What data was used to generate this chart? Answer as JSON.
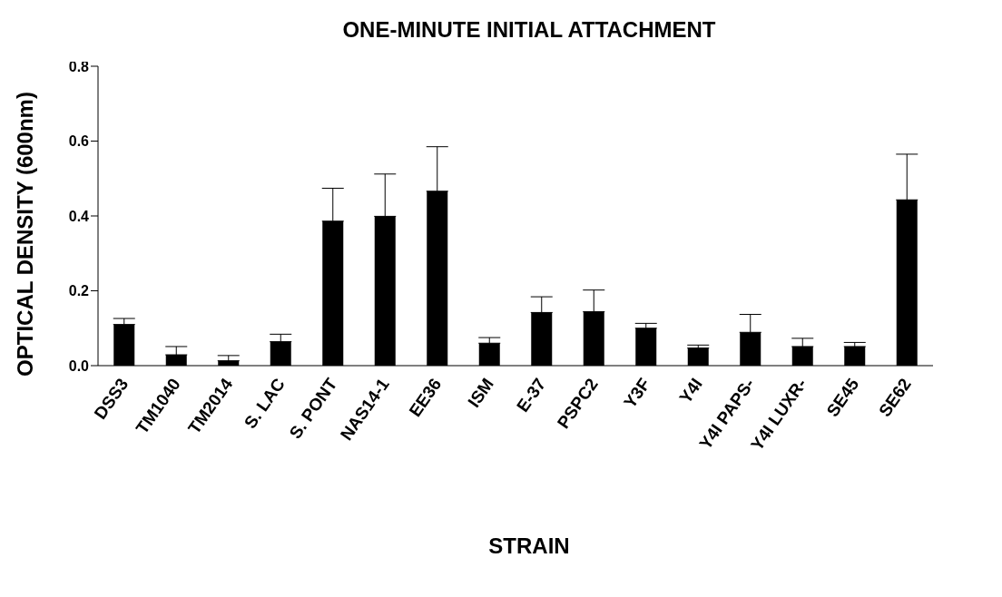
{
  "chart_data": {
    "type": "bar",
    "title": "ONE-MINUTE INITIAL ATTACHMENT",
    "xlabel": "STRAIN",
    "ylabel": "OPTICAL DENSITY (600nm)",
    "categories": [
      "DSS3",
      "TM1040",
      "TM2014",
      "S. LAC",
      "S. PONT",
      "NAS14-1",
      "EE36",
      "ISM",
      "E-37",
      "PSPC2",
      "Y3F",
      "Y4I",
      "Y4I PAPS-",
      "Y4I LUXR-",
      "SE45",
      "SE62"
    ],
    "values": [
      0.11,
      0.029,
      0.013,
      0.064,
      0.386,
      0.399,
      0.466,
      0.06,
      0.142,
      0.144,
      0.1,
      0.047,
      0.089,
      0.051,
      0.051,
      0.443
    ],
    "errors": [
      [
        0.11,
        0.126
      ],
      [
        0.029,
        0.051
      ],
      [
        0.013,
        0.027
      ],
      [
        0.064,
        0.084
      ],
      [
        0.386,
        0.474
      ],
      [
        0.399,
        0.512
      ],
      [
        0.466,
        0.585
      ],
      [
        0.06,
        0.075
      ],
      [
        0.142,
        0.184
      ],
      [
        0.144,
        0.202
      ],
      [
        0.1,
        0.113
      ],
      [
        0.047,
        0.055
      ],
      [
        0.089,
        0.137
      ],
      [
        0.051,
        0.073
      ],
      [
        0.051,
        0.062
      ],
      [
        0.443,
        0.565
      ]
    ],
    "color": "#000000",
    "ylim": [
      0,
      0.8
    ],
    "yticks": [
      {
        "value": 0,
        "label": "0.0"
      },
      0.2,
      0.4,
      0.6,
      0.8
    ],
    "grid": false,
    "legend": false
  }
}
